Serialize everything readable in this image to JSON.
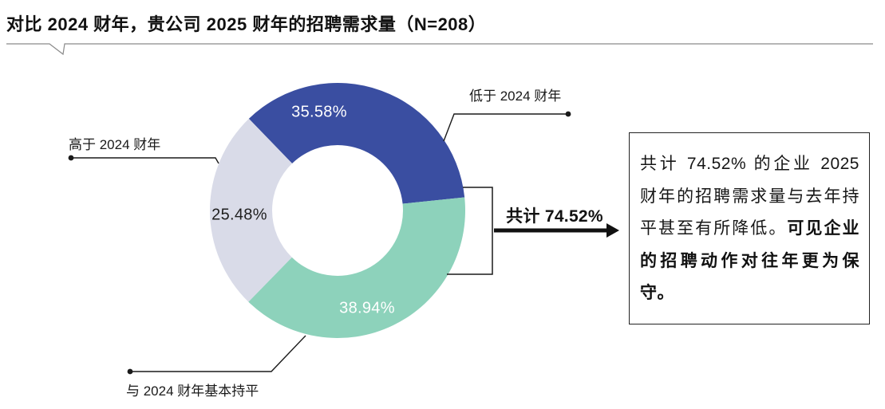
{
  "title": "对比 2024 财年，贵公司 2025 财年的招聘需求量（N=208）",
  "chart_data": {
    "type": "pie",
    "subtype": "donut",
    "title": "对比 2024 财年，贵公司 2025 财年的招聘需求量",
    "sample_size": "N=208",
    "start_angle_deg": 316,
    "inner_radius_ratio": 0.51,
    "legend_position": "callout-labels",
    "segments": [
      {
        "name": "低于 2024 财年",
        "value": 35.58,
        "label": "35.58%",
        "color": "#3A4EA1",
        "label_color": "#ffffff"
      },
      {
        "name": "与 2024 财年基本持平",
        "value": 38.94,
        "label": "38.94%",
        "color": "#8DD2BB",
        "label_color": "#ffffff"
      },
      {
        "name": "高于 2024 财年",
        "value": 25.48,
        "label": "25.48%",
        "color": "#D9DBE8",
        "label_color": "#1f1f1f"
      }
    ],
    "annotation": {
      "label": "共计 74.52%",
      "value": 74.52
    }
  },
  "insight_box": {
    "text_regular": "共计 74.52% 的企业 2025 财年的招聘需求量与去年持平甚至有所降低。",
    "text_bold": "可见企业的招聘动作对往年更为保守。"
  },
  "colors": {
    "lower": "#3A4EA1",
    "flat": "#8DD2BB",
    "higher": "#D9DBE8",
    "line": "#1a1a1a",
    "title_rule": "#8a8a8a"
  }
}
